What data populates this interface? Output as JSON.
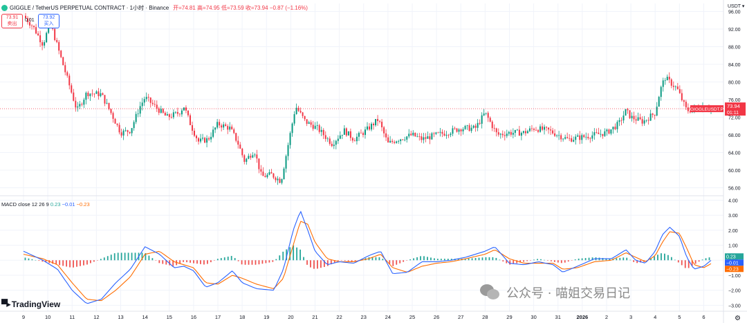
{
  "header": {
    "symbol": "GIGGLE / TetherUS PERPETUAL CONTRACT · 1小时 · Binance",
    "ohlc": "开=74.81 高=74.95 低=73.59 收=73.94 −0.87 (−1.16%)"
  },
  "trade_box": {
    "sell_price": "73.91",
    "sell_label": "卖出",
    "spread": "0.01",
    "buy_price": "73.92",
    "buy_label": "买入"
  },
  "currency": "USDT",
  "price_tag": {
    "symbol": "GIGGLEUSDT.P",
    "price": "73.94",
    "countdown": "01:11"
  },
  "macd": {
    "label": "MACD close 12 26 9",
    "hist": "0.23",
    "macd": "−0.01",
    "signal": "−0.23",
    "tag_hist": "0.23",
    "tag_macd": "−0.01",
    "tag_signal": "−0.23"
  },
  "branding": "TradingView",
  "watermark": "公众号 · 喵姐交易日记",
  "colors": {
    "up": "#089981",
    "down": "#f23645",
    "macd_line": "#2962ff",
    "signal_line": "#ff6d00",
    "hist_up": "#26a69a",
    "hist_down": "#ef5350",
    "grid": "#f0f3fa",
    "last_price_line": "#f23645"
  },
  "chart_data": [
    {
      "type": "candlestick",
      "title": "GIGGLE / TetherUS PERPETUAL CONTRACT · 1小时 · Binance",
      "xlabel": "",
      "ylabel": "",
      "x_ticks": [
        "9",
        "10",
        "11",
        "12",
        "13",
        "14",
        "15",
        "16",
        "17",
        "18",
        "19",
        "20",
        "21",
        "22",
        "23",
        "24",
        "25",
        "26",
        "27",
        "28",
        "29",
        "30",
        "31",
        "2026",
        "2",
        "3",
        "4",
        "5",
        "6"
      ],
      "y_ticks": [
        "56.00",
        "60.00",
        "64.00",
        "68.00",
        "72.00",
        "76.00",
        "80.00",
        "84.00",
        "88.00",
        "92.00",
        "96.00"
      ],
      "ylim": [
        54.2,
        97.8
      ],
      "last_price": 73.94,
      "grid": true,
      "anchors": [
        [
          9,
          95.0
        ],
        [
          9.4,
          92.5
        ],
        [
          9.8,
          88.5
        ],
        [
          10.1,
          93.5
        ],
        [
          10.4,
          88.0
        ],
        [
          10.9,
          79.0
        ],
        [
          11.2,
          73.5
        ],
        [
          11.6,
          77.5
        ],
        [
          12.2,
          77.2
        ],
        [
          12.6,
          73.0
        ],
        [
          13.0,
          68.5
        ],
        [
          13.4,
          69.0
        ],
        [
          13.8,
          74.5
        ],
        [
          14.0,
          76.5
        ],
        [
          14.4,
          74.5
        ],
        [
          14.9,
          72.0
        ],
        [
          15.4,
          73.0
        ],
        [
          15.6,
          74.5
        ],
        [
          15.9,
          70.0
        ],
        [
          16.2,
          66.5
        ],
        [
          16.6,
          67.0
        ],
        [
          17.0,
          70.5
        ],
        [
          17.5,
          69.5
        ],
        [
          17.8,
          66.5
        ],
        [
          18.1,
          62.0
        ],
        [
          18.5,
          64.5
        ],
        [
          18.8,
          58.5
        ],
        [
          19.2,
          59.0
        ],
        [
          19.6,
          57.5
        ],
        [
          19.9,
          66.0
        ],
        [
          20.2,
          74.5
        ],
        [
          20.6,
          71.0
        ],
        [
          21.1,
          69.5
        ],
        [
          21.7,
          66.0
        ],
        [
          22.2,
          69.0
        ],
        [
          22.6,
          67.0
        ],
        [
          23.1,
          69.0
        ],
        [
          23.6,
          71.5
        ],
        [
          24.0,
          66.0
        ],
        [
          24.4,
          67.0
        ],
        [
          25.0,
          68.0
        ],
        [
          25.4,
          67.0
        ],
        [
          26.0,
          68.0
        ],
        [
          26.4,
          68.5
        ],
        [
          27.0,
          69.5
        ],
        [
          27.6,
          69.5
        ],
        [
          28.0,
          73.0
        ],
        [
          28.5,
          68.0
        ],
        [
          29.0,
          68.5
        ],
        [
          29.6,
          68.5
        ],
        [
          30.0,
          69.5
        ],
        [
          30.6,
          69.0
        ],
        [
          31.0,
          68.0
        ],
        [
          31.4,
          67.0
        ],
        [
          32.0,
          67.5
        ],
        [
          32.5,
          68.0
        ],
        [
          33.0,
          68.5
        ],
        [
          33.5,
          70.5
        ],
        [
          33.8,
          73.5
        ],
        [
          34.0,
          72.0
        ],
        [
          34.5,
          71.0
        ],
        [
          35.0,
          73.0
        ],
        [
          35.2,
          78.0
        ],
        [
          35.4,
          81.0
        ],
        [
          35.9,
          78.5
        ],
        [
          36.3,
          73.5
        ],
        [
          36.8,
          74.0
        ],
        [
          37.1,
          74.5
        ],
        [
          37.3,
          73.94
        ]
      ]
    },
    {
      "type": "macd",
      "title": "MACD close 12 26 9",
      "xlabel": "",
      "ylabel": "",
      "y_ticks": [
        "−3.00",
        "−2.00",
        "−1.00",
        "0.00",
        "1.00",
        "2.00",
        "3.00",
        "4.00"
      ],
      "ylim": [
        -3.4,
        4.3
      ],
      "grid": true,
      "series": [
        {
          "name": "MACD",
          "color": "#2962ff",
          "points": [
            [
              9,
              0.6
            ],
            [
              9.8,
              0.0
            ],
            [
              10.4,
              -0.6
            ],
            [
              11.0,
              -2.0
            ],
            [
              11.6,
              -2.9
            ],
            [
              12.2,
              -2.6
            ],
            [
              12.8,
              -1.5
            ],
            [
              13.4,
              -0.6
            ],
            [
              14.0,
              0.9
            ],
            [
              14.6,
              0.4
            ],
            [
              15.2,
              -0.5
            ],
            [
              15.6,
              -0.4
            ],
            [
              16.0,
              -0.7
            ],
            [
              16.5,
              -1.8
            ],
            [
              17.0,
              -1.5
            ],
            [
              17.6,
              -0.7
            ],
            [
              18.0,
              -1.5
            ],
            [
              18.6,
              -1.9
            ],
            [
              19.3,
              -2.0
            ],
            [
              19.7,
              -0.6
            ],
            [
              20.1,
              2.0
            ],
            [
              20.4,
              3.3
            ],
            [
              20.7,
              2.0
            ],
            [
              21.0,
              0.6
            ],
            [
              21.5,
              -0.3
            ],
            [
              22.0,
              -0.1
            ],
            [
              22.6,
              -0.2
            ],
            [
              23.2,
              0.3
            ],
            [
              23.7,
              0.6
            ],
            [
              24.2,
              -0.9
            ],
            [
              24.8,
              -0.8
            ],
            [
              25.4,
              -0.1
            ],
            [
              26.0,
              -0.1
            ],
            [
              26.6,
              0.0
            ],
            [
              27.2,
              0.2
            ],
            [
              28.0,
              0.6
            ],
            [
              28.4,
              0.9
            ],
            [
              29.0,
              -0.2
            ],
            [
              29.6,
              -0.3
            ],
            [
              30.2,
              -0.1
            ],
            [
              30.8,
              -0.3
            ],
            [
              31.2,
              -0.8
            ],
            [
              31.8,
              -0.4
            ],
            [
              32.5,
              0.1
            ],
            [
              33.2,
              0.1
            ],
            [
              33.8,
              0.7
            ],
            [
              34.2,
              0.0
            ],
            [
              34.6,
              -0.2
            ],
            [
              35.0,
              0.6
            ],
            [
              35.3,
              1.7
            ],
            [
              35.6,
              2.2
            ],
            [
              36.0,
              1.6
            ],
            [
              36.3,
              0.2
            ],
            [
              36.6,
              -0.6
            ],
            [
              37.0,
              -0.4
            ],
            [
              37.3,
              -0.01
            ]
          ]
        },
        {
          "name": "Signal",
          "color": "#ff6d00",
          "points": [
            [
              9,
              0.4
            ],
            [
              9.8,
              0.1
            ],
            [
              10.4,
              -0.3
            ],
            [
              11.0,
              -1.5
            ],
            [
              11.6,
              -2.6
            ],
            [
              12.2,
              -2.7
            ],
            [
              12.8,
              -2.0
            ],
            [
              13.4,
              -1.1
            ],
            [
              14.0,
              0.4
            ],
            [
              14.6,
              0.6
            ],
            [
              15.2,
              -0.1
            ],
            [
              15.6,
              -0.3
            ],
            [
              16.0,
              -0.5
            ],
            [
              16.5,
              -1.5
            ],
            [
              17.0,
              -1.6
            ],
            [
              17.6,
              -1.0
            ],
            [
              18.0,
              -1.2
            ],
            [
              18.6,
              -1.6
            ],
            [
              19.3,
              -1.9
            ],
            [
              19.7,
              -1.2
            ],
            [
              20.1,
              1.0
            ],
            [
              20.4,
              2.6
            ],
            [
              20.7,
              2.4
            ],
            [
              21.0,
              1.2
            ],
            [
              21.5,
              0.1
            ],
            [
              22.0,
              -0.1
            ],
            [
              22.6,
              -0.1
            ],
            [
              23.2,
              0.1
            ],
            [
              23.7,
              0.4
            ],
            [
              24.2,
              -0.5
            ],
            [
              24.8,
              -0.8
            ],
            [
              25.4,
              -0.4
            ],
            [
              26.0,
              -0.2
            ],
            [
              26.6,
              -0.1
            ],
            [
              27.2,
              0.1
            ],
            [
              28.0,
              0.4
            ],
            [
              28.4,
              0.7
            ],
            [
              29.0,
              0.1
            ],
            [
              29.6,
              -0.2
            ],
            [
              30.2,
              -0.2
            ],
            [
              30.8,
              -0.2
            ],
            [
              31.2,
              -0.6
            ],
            [
              31.8,
              -0.5
            ],
            [
              32.5,
              -0.1
            ],
            [
              33.2,
              0.0
            ],
            [
              33.8,
              0.5
            ],
            [
              34.2,
              0.2
            ],
            [
              34.6,
              -0.1
            ],
            [
              35.0,
              0.3
            ],
            [
              35.3,
              1.2
            ],
            [
              35.6,
              1.9
            ],
            [
              36.0,
              1.8
            ],
            [
              36.3,
              0.8
            ],
            [
              36.6,
              -0.3
            ],
            [
              37.0,
              -0.5
            ],
            [
              37.3,
              -0.23
            ]
          ]
        }
      ]
    }
  ]
}
